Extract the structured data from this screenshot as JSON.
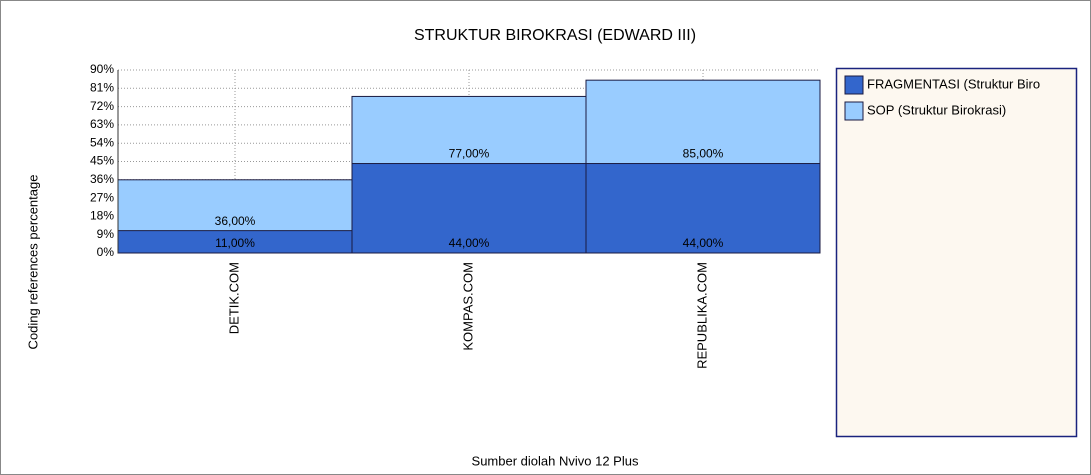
{
  "chart_data": {
    "type": "bar",
    "title": "STRUKTUR BIROKRASI (EDWARD III)",
    "y_label": "Coding references percentage",
    "x_label": "Sumber diolah Nvivo 12 Plus",
    "categories": [
      "DETIK.COM",
      "KOMPAS.COM",
      "REPUBLIKA.COM"
    ],
    "series": [
      {
        "name": "FRAGMENTASI (Struktur Biro",
        "color": "#3366cc",
        "values": [
          11,
          44,
          44
        ],
        "value_labels": [
          "11,00%",
          "44,00%",
          "44,00%"
        ]
      },
      {
        "name": "SOP (Struktur Birokrasi)",
        "color": "#99ccff",
        "values": [
          36,
          77,
          85
        ],
        "value_labels": [
          "36,00%",
          "77,00%",
          "85,00%"
        ]
      }
    ],
    "ylim": [
      0,
      90
    ],
    "yticks": [
      {
        "value": 0,
        "label": "0%"
      },
      {
        "value": 9,
        "label": "9%"
      },
      {
        "value": 18,
        "label": "18%"
      },
      {
        "value": 27,
        "label": "27%"
      },
      {
        "value": 36,
        "label": "36%"
      },
      {
        "value": 45,
        "label": "45%"
      },
      {
        "value": 54,
        "label": "54%"
      },
      {
        "value": 63,
        "label": "63%"
      },
      {
        "value": 72,
        "label": "72%"
      },
      {
        "value": 81,
        "label": "81%"
      },
      {
        "value": 90,
        "label": "90%"
      }
    ],
    "grid": true,
    "legend": "right"
  }
}
